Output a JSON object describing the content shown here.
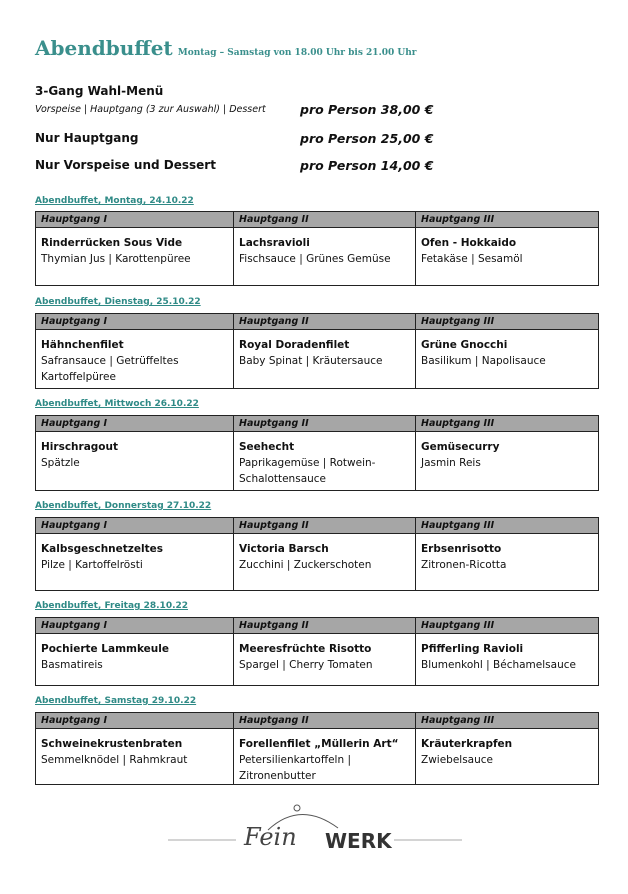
{
  "header": {
    "title": "Abendbuffet",
    "subtitle": "Montag – Samstag von 18.00 Uhr bis 21.00 Uhr"
  },
  "offers": [
    {
      "label": "3-Gang Wahl-Menü",
      "description": "Vorspeise | Hauptgang (3 zur Auswahl) | Dessert",
      "price": "pro Person 38,00 €"
    },
    {
      "label": "Nur Hauptgang",
      "price": "pro Person 25,00 €"
    },
    {
      "label": "Nur Vorspeise und Dessert",
      "price": "pro Person 14,00 €"
    }
  ],
  "columns": [
    "Hauptgang I",
    "Hauptgang II",
    "Hauptgang III"
  ],
  "days": [
    {
      "heading": "Abendbuffet, Montag, 24.10.22",
      "dishes": [
        {
          "name": "Rinderrücken Sous Vide",
          "sides": "Thymian Jus | Karottenpüree"
        },
        {
          "name": "Lachsravioli",
          "sides": "Fischsauce | Grünes Gemüse"
        },
        {
          "name": "Ofen - Hokkaido",
          "sides": "Fetakäse | Sesamöl"
        }
      ]
    },
    {
      "heading": "Abendbuffet, Dienstag, 25.10.22",
      "dishes": [
        {
          "name": "Hähnchenfilet",
          "sides": "Safransauce | Getrüffeltes Kartoffelpüree"
        },
        {
          "name": "Royal Doradenfilet",
          "sides": "Baby Spinat | Kräutersauce"
        },
        {
          "name": "Grüne Gnocchi",
          "sides": "Basilikum | Napolisauce"
        }
      ]
    },
    {
      "heading": "Abendbuffet, Mittwoch 26.10.22",
      "dishes": [
        {
          "name": "Hirschragout",
          "sides": "Spätzle"
        },
        {
          "name": "Seehecht",
          "sides": "Paprikagemüse | Rotwein-Schalottensauce"
        },
        {
          "name": "Gemüsecurry",
          "sides": "Jasmin Reis"
        }
      ]
    },
    {
      "heading": "Abendbuffet, Donnerstag 27.10.22",
      "dishes": [
        {
          "name": "Kalbsgeschnetzeltes",
          "sides": "Pilze | Kartoffelrösti"
        },
        {
          "name": "Victoria Barsch",
          "sides": "Zucchini | Zuckerschoten"
        },
        {
          "name": "Erbsenrisotto",
          "sides": "Zitronen-Ricotta"
        }
      ]
    },
    {
      "heading": "Abendbuffet, Freitag 28.10.22",
      "dishes": [
        {
          "name": "Pochierte Lammkeule",
          "sides": "Basmatireis"
        },
        {
          "name": "Meeresfrüchte Risotto",
          "sides": "Spargel | Cherry Tomaten"
        },
        {
          "name": "Pfifferling Ravioli",
          "sides": "Blumenkohl | Béchamelsauce"
        }
      ]
    },
    {
      "heading": "Abendbuffet, Samstag 29.10.22",
      "dishes": [
        {
          "name": "Schweinekrustenbraten",
          "sides": "Semmelknödel | Rahmkraut"
        },
        {
          "name": "Forellenfilet „Müllerin Art“",
          "sides": "Petersilienkartoffeln | Zitronenbutter"
        },
        {
          "name": "Kräuterkrapfen",
          "sides": "Zwiebelsauce"
        }
      ]
    }
  ],
  "logo": {
    "text": "FeinWERK"
  },
  "colors": {
    "accent": "#3a8f8c",
    "header_bg": "#a6a6a6"
  }
}
